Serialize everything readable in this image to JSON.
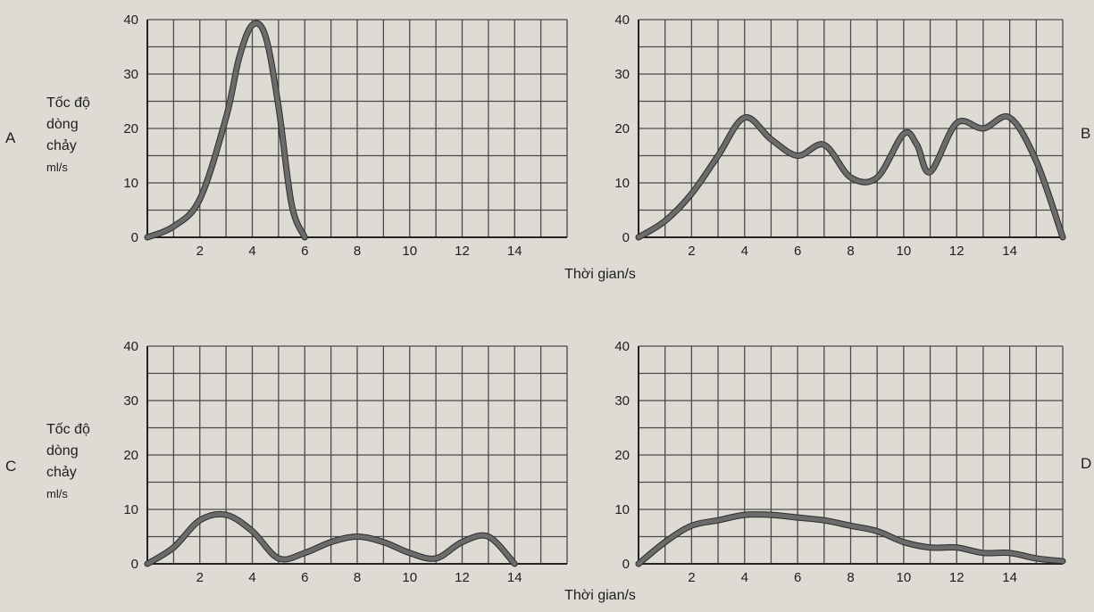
{
  "colors": {
    "background": "#dedbd4",
    "grid": "#4a4a4a",
    "line": "#6b6b6b"
  },
  "chart_data": [
    {
      "type": "line",
      "panel": "A",
      "ylabel": [
        "Tốc độ",
        "dòng",
        "chảy",
        "ml/s"
      ],
      "xlabel": "",
      "xlim": [
        0,
        16
      ],
      "ylim": [
        0,
        40
      ],
      "xticks": [
        2,
        4,
        6,
        8,
        10,
        12,
        14
      ],
      "yticks": [
        0,
        10,
        20,
        30,
        40
      ],
      "grid": true,
      "series": [
        {
          "x": [
            0,
            1,
            2,
            3,
            3.5,
            4,
            4.5,
            5,
            5.5,
            6
          ],
          "y": [
            0,
            2,
            7,
            22,
            33,
            39,
            37,
            24,
            6,
            0
          ]
        }
      ]
    },
    {
      "type": "line",
      "panel": "B",
      "ylabel": [],
      "xlabel": "Thời gian/s",
      "xlim": [
        0,
        16
      ],
      "ylim": [
        0,
        40
      ],
      "xticks": [
        2,
        4,
        6,
        8,
        10,
        12,
        14
      ],
      "yticks": [
        0,
        10,
        20,
        30,
        40
      ],
      "grid": true,
      "series": [
        {
          "x": [
            0,
            1,
            2,
            3,
            4,
            5,
            6,
            7,
            8,
            9,
            10,
            10.5,
            11,
            12,
            13,
            14,
            15,
            16
          ],
          "y": [
            0,
            3,
            8,
            15,
            22,
            18,
            15,
            17,
            11,
            11,
            19,
            17,
            12,
            21,
            20,
            22,
            14,
            0
          ]
        }
      ]
    },
    {
      "type": "line",
      "panel": "C",
      "ylabel": [
        "Tốc độ",
        "dòng",
        "chảy",
        "ml/s"
      ],
      "xlabel": "Thời gian/s",
      "xlim": [
        0,
        16
      ],
      "ylim": [
        0,
        40
      ],
      "xticks": [
        2,
        4,
        6,
        8,
        10,
        12,
        14
      ],
      "yticks": [
        0,
        10,
        20,
        30,
        40
      ],
      "grid": true,
      "series": [
        {
          "x": [
            0,
            1,
            2,
            3,
            4,
            5,
            6,
            7,
            8,
            9,
            10,
            11,
            12,
            13,
            14
          ],
          "y": [
            0,
            3,
            8,
            9,
            6,
            1,
            2,
            4,
            5,
            4,
            2,
            1,
            4,
            5,
            0
          ]
        }
      ]
    },
    {
      "type": "line",
      "panel": "D",
      "ylabel": [],
      "xlabel": "",
      "xlim": [
        0,
        16
      ],
      "ylim": [
        0,
        40
      ],
      "xticks": [
        2,
        4,
        6,
        8,
        10,
        12,
        14
      ],
      "yticks": [
        0,
        10,
        20,
        30,
        40
      ],
      "grid": true,
      "series": [
        {
          "x": [
            0,
            1,
            2,
            3,
            4,
            5,
            6,
            7,
            8,
            9,
            10,
            11,
            12,
            13,
            14,
            15,
            16
          ],
          "y": [
            0,
            4,
            7,
            8,
            9,
            9,
            8.5,
            8,
            7,
            6,
            4,
            3,
            3,
            2,
            2,
            1,
            0.5
          ]
        }
      ]
    }
  ]
}
